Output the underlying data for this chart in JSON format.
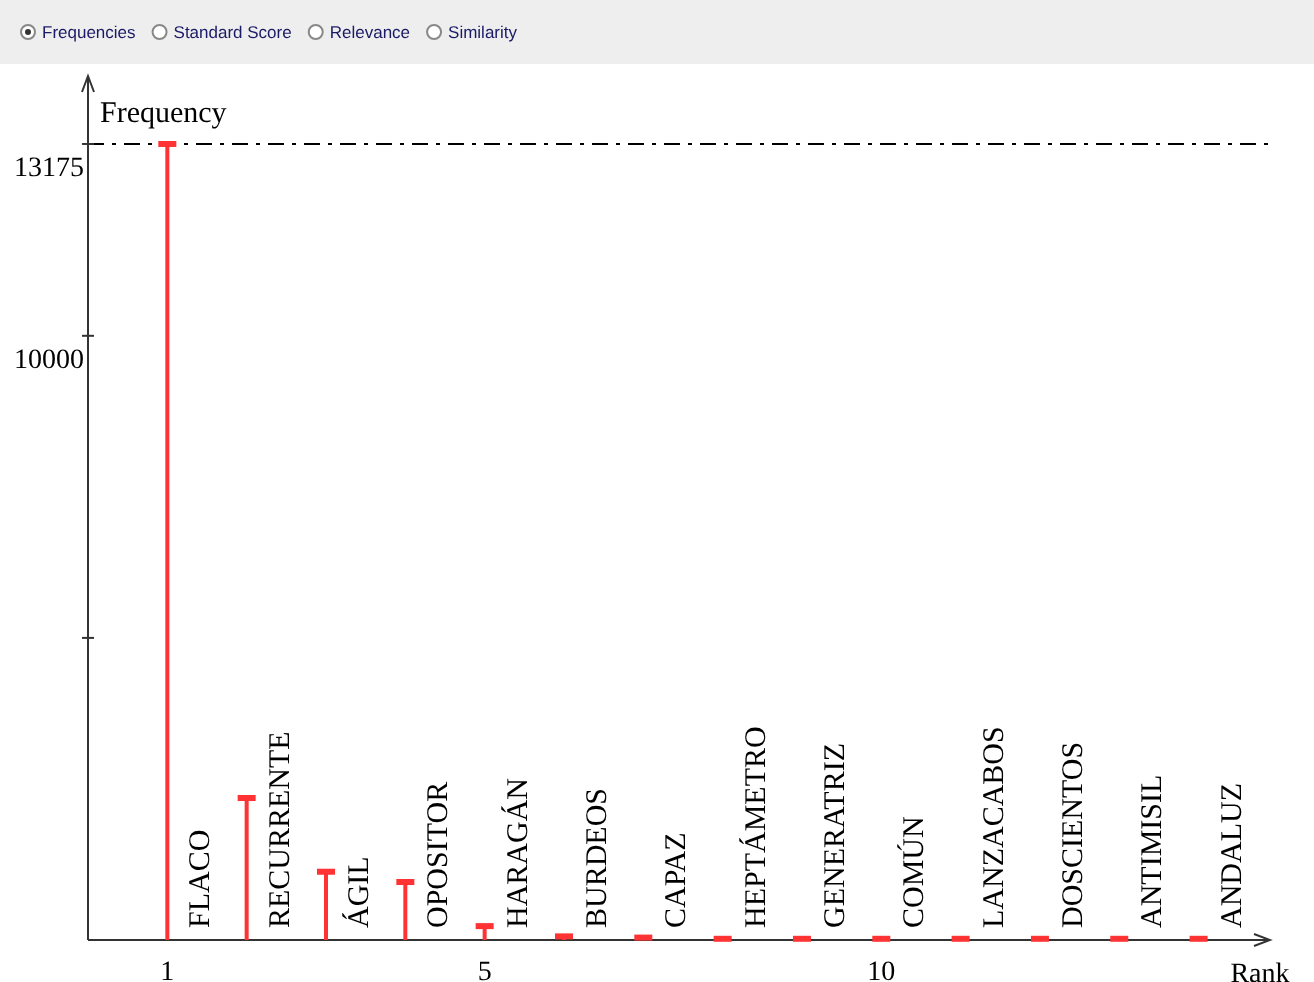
{
  "chart_data": {
    "type": "lollipop",
    "xlabel": "Rank",
    "ylabel": "Frequency",
    "x": [
      1,
      2,
      3,
      4,
      5,
      6,
      7,
      8,
      9,
      10,
      11,
      12,
      13,
      14
    ],
    "series": [
      {
        "color": "#ff3333",
        "values": [
          13175,
          2350,
          1130,
          960,
          230,
          60,
          40,
          20,
          20,
          20,
          20,
          20,
          20,
          20
        ]
      }
    ],
    "xlim": [
      0,
      14.9
    ],
    "xticks": [
      1,
      5,
      10
    ],
    "ylim": [
      0,
      14300
    ],
    "yticks": [
      {
        "value": 5000,
        "label": null
      },
      10000,
      13175
    ],
    "ref_lines": [
      {
        "axis": "y",
        "value": 13175,
        "color": "#000000",
        "line_style": "dashdot"
      }
    ],
    "grid": false,
    "annotations": [
      "Frequencies",
      "Standard Score",
      "Relevance",
      "Similarity",
      "FLACO",
      "RECURRENTE",
      "ÁGIL",
      "OPOSITOR",
      "HARAGÁN",
      "BURDEOS",
      "CAPAZ",
      "HEPTÁMETRO",
      "GENERATRIZ",
      "COMÚN",
      "LANZACABOS",
      "DOSCIENTOS",
      "ANTIMISIL",
      "ANDALUZ"
    ]
  }
}
